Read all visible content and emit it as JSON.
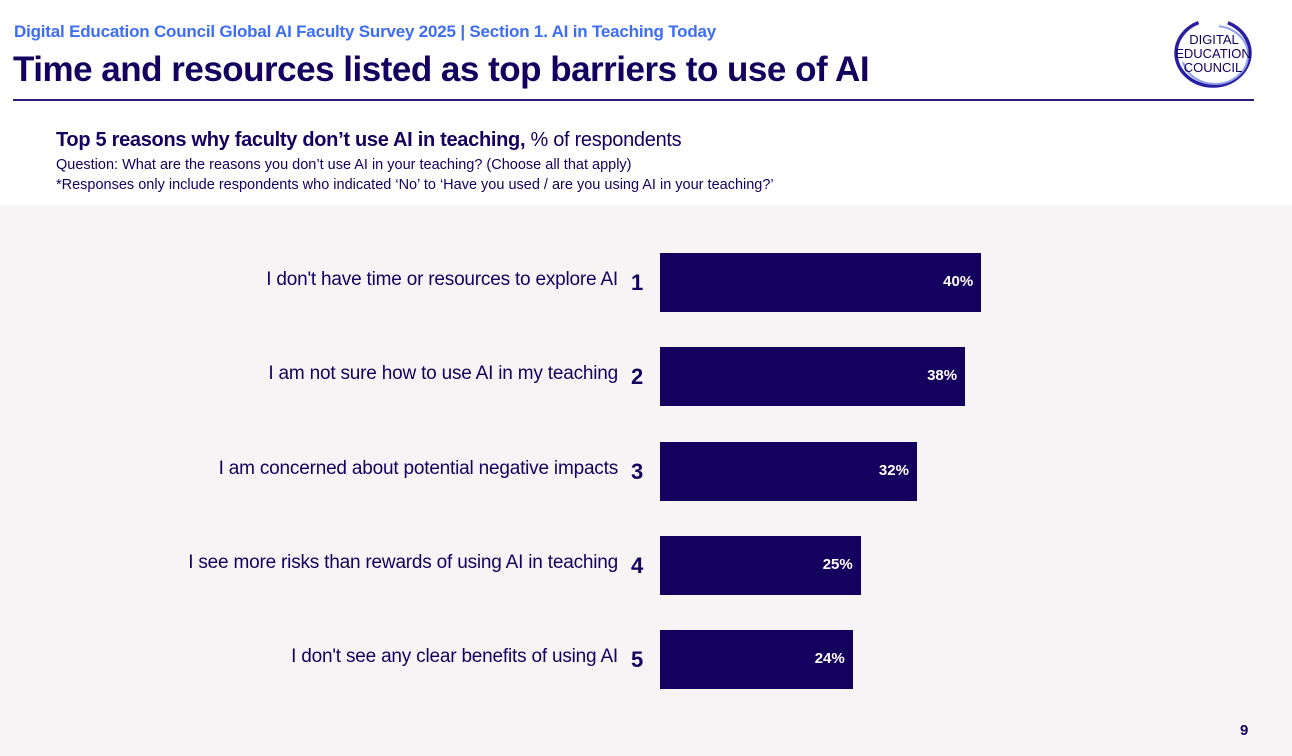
{
  "header": {
    "kicker": "Digital Education Council Global AI Faculty Survey 2025 | Section 1. AI in Teaching Today",
    "title": "Time and resources listed as top barriers to use of AI",
    "logo_text": [
      "DIGITAL",
      "EDUCATION",
      "COUNCIL"
    ]
  },
  "colors": {
    "accent": "#3d6df2",
    "navy": "#14005e",
    "band": "#f6f4f4"
  },
  "chart_data": {
    "type": "bar",
    "orientation": "horizontal",
    "title_bold": "Top 5 reasons why faculty don’t use AI in teaching,",
    "title_rest": " % of respondents",
    "question": "Question: What are the reasons you don’t use AI in your teaching? (Choose all that apply)",
    "note": "*Responses only include respondents who indicated ‘No’ to ‘Have you used / are you using AI in your teaching?’",
    "categories": [
      "I don't have time or resources to explore AI",
      "I am not sure how to use AI in my teaching",
      "I am concerned about potential negative impacts",
      "I see more risks than rewards of using AI in teaching",
      "I don't see any clear benefits of using AI"
    ],
    "ranks": [
      "1",
      "2",
      "3",
      "4",
      "5"
    ],
    "values": [
      40,
      38,
      32,
      25,
      24
    ],
    "value_labels": [
      "40%",
      "38%",
      "32%",
      "25%",
      "24%"
    ],
    "xlim": [
      0,
      100
    ]
  },
  "page_number": "9"
}
